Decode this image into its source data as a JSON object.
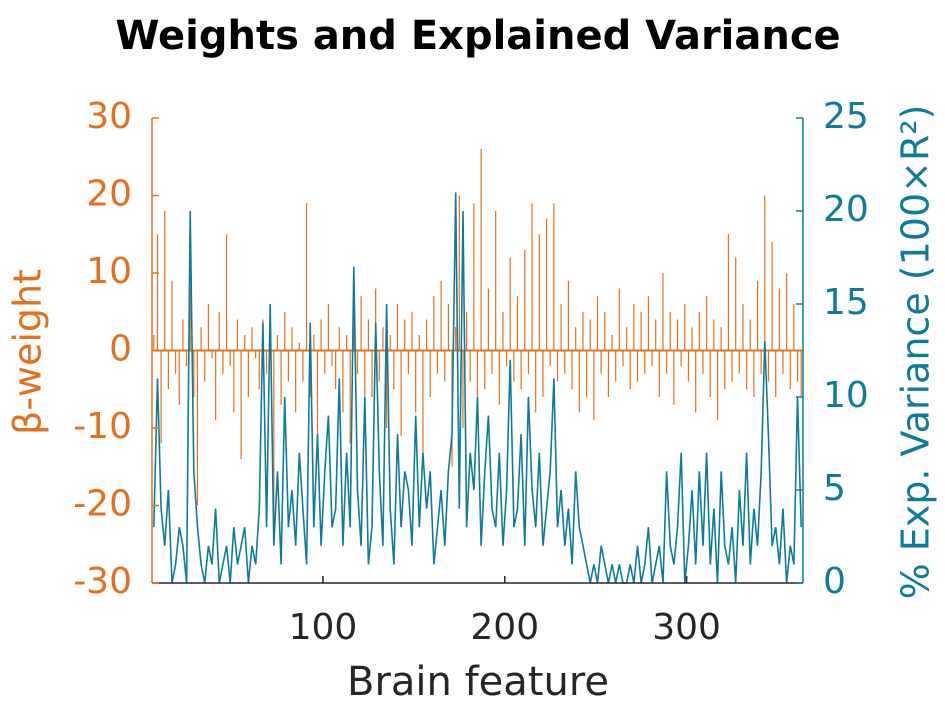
{
  "chart_data": {
    "type": "bar-line",
    "title": "Weights and Explained Variance",
    "xlabel": "Brain feature",
    "ylabel": "β-weight",
    "y2label": "% Exp. Variance (100×R²)",
    "x": [
      7,
      9,
      11,
      13,
      15,
      17,
      19,
      21,
      23,
      25,
      27,
      29,
      31,
      33,
      35,
      37,
      39,
      41,
      43,
      45,
      47,
      49,
      51,
      53,
      55,
      57,
      59,
      61,
      63,
      65,
      67,
      69,
      71,
      73,
      75,
      77,
      79,
      81,
      83,
      85,
      87,
      89,
      91,
      93,
      95,
      97,
      99,
      101,
      103,
      105,
      107,
      109,
      111,
      113,
      115,
      117,
      119,
      121,
      123,
      125,
      127,
      129,
      131,
      133,
      135,
      137,
      139,
      141,
      143,
      145,
      147,
      149,
      151,
      153,
      155,
      157,
      159,
      161,
      163,
      165,
      167,
      169,
      171,
      173,
      175,
      177,
      179,
      181,
      183,
      185,
      187,
      189,
      191,
      193,
      195,
      197,
      199,
      201,
      203,
      205,
      207,
      209,
      211,
      213,
      215,
      217,
      219,
      221,
      223,
      225,
      227,
      229,
      231,
      233,
      235,
      237,
      239,
      241,
      243,
      245,
      247,
      249,
      251,
      253,
      255,
      257,
      259,
      261,
      263,
      265,
      267,
      269,
      271,
      273,
      275,
      277,
      279,
      281,
      283,
      285,
      287,
      289,
      291,
      293,
      295,
      297,
      299,
      301,
      303,
      305,
      307,
      309,
      311,
      313,
      315,
      317,
      319,
      321,
      323,
      325,
      327,
      329,
      331,
      333,
      335,
      337,
      339,
      341,
      343,
      345,
      347,
      349,
      351,
      353,
      355,
      357,
      359,
      361,
      363
    ],
    "series": [
      {
        "name": "β-weight",
        "type": "bar",
        "color": "#e4701e",
        "values": [
          2,
          15,
          -12,
          18,
          -5,
          9,
          -3,
          -7,
          4,
          -2,
          8,
          -6,
          -20,
          3,
          -4,
          6,
          -1,
          -9,
          5,
          -3,
          15,
          -2,
          -8,
          4,
          -14,
          2,
          -6,
          3,
          -1,
          -5,
          4,
          -3,
          6,
          -23,
          2,
          -7,
          5,
          -4,
          3,
          -8,
          1,
          -4,
          19,
          -6,
          2,
          -11,
          4,
          -3,
          6,
          -2,
          -5,
          3,
          -8,
          2,
          -12,
          5,
          -3,
          7,
          -9,
          4,
          -6,
          8,
          -4,
          3,
          -10,
          2,
          -5,
          6,
          -11,
          4,
          -3,
          5,
          -8,
          2,
          -15,
          4,
          -6,
          7,
          -3,
          9,
          -4,
          6,
          -15,
          3,
          20,
          -10,
          5,
          -4,
          19,
          -6,
          26,
          -5,
          8,
          -3,
          18,
          -7,
          5,
          -2,
          12,
          -4,
          7,
          -5,
          13,
          -3,
          19,
          -8,
          15,
          -6,
          17,
          -2,
          19,
          -4,
          6,
          -3,
          9,
          -5,
          3,
          -8,
          5,
          -6,
          4,
          -9,
          7,
          -3,
          5,
          -6,
          2,
          -4,
          8,
          -2,
          3,
          -5,
          6,
          -4,
          5,
          -3,
          7,
          -2,
          4,
          -6,
          10,
          -3,
          5,
          -7,
          4,
          -2,
          6,
          -4,
          3,
          -8,
          5,
          -3,
          7,
          -6,
          4,
          -9,
          3,
          -5,
          15,
          -4,
          12,
          -3,
          6,
          -5,
          4,
          -6,
          9,
          -3,
          20,
          -4,
          14,
          -6,
          8,
          -3,
          10,
          -5,
          6,
          -4,
          -6
        ]
      },
      {
        "name": "% Exp. Variance",
        "type": "line",
        "axis": "y2",
        "color": "#0f7b9b",
        "values": [
          3,
          11,
          4,
          2,
          5,
          0,
          1,
          3,
          2,
          0,
          20,
          6,
          3,
          1,
          0,
          2,
          1,
          4,
          0,
          1,
          2,
          0,
          3,
          1,
          2,
          3,
          0,
          2,
          1,
          4,
          14,
          3,
          15,
          2,
          6,
          1,
          10,
          3,
          5,
          2,
          7,
          4,
          1,
          14,
          3,
          8,
          2,
          6,
          9,
          3,
          4,
          11,
          2,
          7,
          3,
          17,
          5,
          2,
          10,
          1,
          3,
          14,
          6,
          2,
          15,
          4,
          1,
          8,
          3,
          6,
          5,
          2,
          9,
          3,
          7,
          4,
          6,
          1,
          3,
          5,
          2,
          6,
          8,
          21,
          4,
          20,
          3,
          7,
          5,
          10,
          2,
          6,
          9,
          4,
          3,
          7,
          2,
          5,
          12,
          3,
          4,
          8,
          2,
          10,
          5,
          3,
          7,
          2,
          4,
          6,
          11,
          3,
          5,
          2,
          4,
          1,
          6,
          3,
          2,
          1,
          0,
          1,
          0,
          2,
          1,
          0,
          1,
          0,
          1,
          0,
          0,
          1,
          0,
          2,
          0,
          1,
          3,
          0,
          1,
          2,
          0,
          6,
          2,
          1,
          3,
          7,
          0,
          2,
          5,
          1,
          6,
          2,
          7,
          1,
          4,
          0,
          6,
          2,
          1,
          3,
          0,
          5,
          2,
          7,
          1,
          4,
          2,
          6,
          13,
          8,
          2,
          3,
          1,
          4,
          0,
          2,
          1,
          10,
          3
        ]
      }
    ],
    "xlim": [
      6,
      364
    ],
    "xticks": [
      100,
      200,
      300
    ],
    "ylim": [
      -30,
      30
    ],
    "yticks": [
      -30,
      -20,
      -10,
      0,
      10,
      20,
      30
    ],
    "y2lim": [
      0,
      25
    ],
    "y2ticks": [
      0,
      5,
      10,
      15,
      20,
      25
    ]
  }
}
